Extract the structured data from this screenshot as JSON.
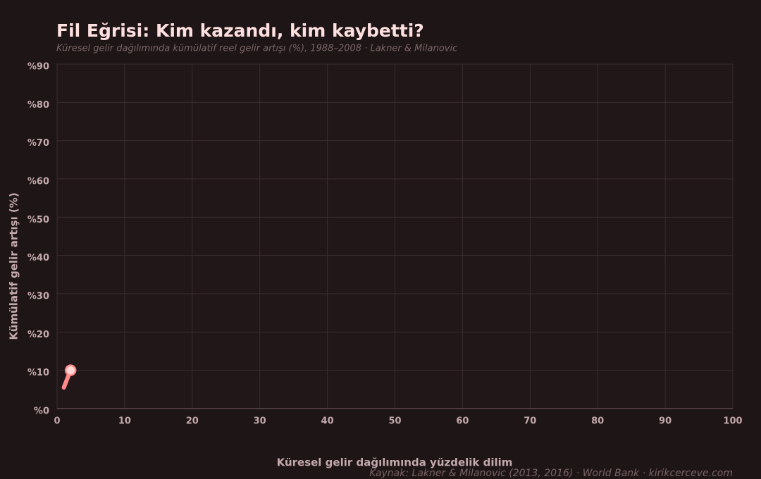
{
  "chart_data": {
    "type": "line",
    "title": "Fil Eğrisi: Kim kazandı, kim kaybetti?",
    "subtitle": "Küresel gelir dağılımında kümülatif reel gelir artışı (%), 1988–2008 · Lakner & Milanovic",
    "x_label": "Küresel gelir dağılımında yüzdelik dilim",
    "y_label": "Kümülatif gelir artışı (%)",
    "source": "Kaynak: Lakner & Milanovic (2013, 2016) · World Bank · kirikcerceve.com",
    "x": [
      1,
      2
    ],
    "series": [
      {
        "values": [
          5.5,
          10
        ],
        "color": "#ff8a8a"
      }
    ],
    "xlim": [
      0,
      100
    ],
    "xticks": [
      0,
      10,
      20,
      30,
      40,
      50,
      60,
      70,
      80,
      90,
      100
    ],
    "ylim": [
      0,
      90
    ],
    "yticks": [
      {
        "value": 0,
        "label": "%0"
      },
      {
        "value": 10,
        "label": "%10"
      },
      {
        "value": 20,
        "label": "%20"
      },
      {
        "value": 30,
        "label": "%30"
      },
      {
        "value": 40,
        "label": "%40"
      },
      {
        "value": 50,
        "label": "%50"
      },
      {
        "value": 60,
        "label": "%60"
      },
      {
        "value": 70,
        "label": "%70"
      },
      {
        "value": 80,
        "label": "%80"
      },
      {
        "value": 90,
        "label": "%90"
      }
    ],
    "grid": true
  }
}
